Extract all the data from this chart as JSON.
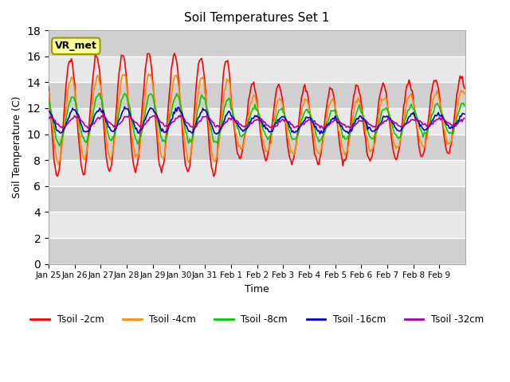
{
  "title": "Soil Temperatures Set 1",
  "ylabel": "Soil Temperature (C)",
  "xlabel": "Time",
  "ylim": [
    0,
    18
  ],
  "yticks": [
    0,
    2,
    4,
    6,
    8,
    10,
    12,
    14,
    16,
    18
  ],
  "xtick_labels": [
    "Jan 25",
    "Jan 26",
    "Jan 27",
    "Jan 28",
    "Jan 29",
    "Jan 30",
    "Jan 31",
    "Feb 1",
    "Feb 2",
    "Feb 3",
    "Feb 4",
    "Feb 5",
    "Feb 6",
    "Feb 7",
    "Feb 8",
    "Feb 9"
  ],
  "station_label": "VR_met",
  "background_color": "#ffffff",
  "plot_bg_color": "#e8e8e8",
  "grid_color": "#ffffff",
  "colors": {
    "Tsoil -2cm": "#ff0000",
    "Tsoil -4cm": "#ff8c00",
    "Tsoil -8cm": "#00cc00",
    "Tsoil -16cm": "#0000cc",
    "Tsoil -32cm": "#aa00aa"
  },
  "series_labels": [
    "Tsoil -2cm",
    "Tsoil -4cm",
    "Tsoil -8cm",
    "Tsoil -16cm",
    "Tsoil -32cm"
  ],
  "n_days": 16
}
